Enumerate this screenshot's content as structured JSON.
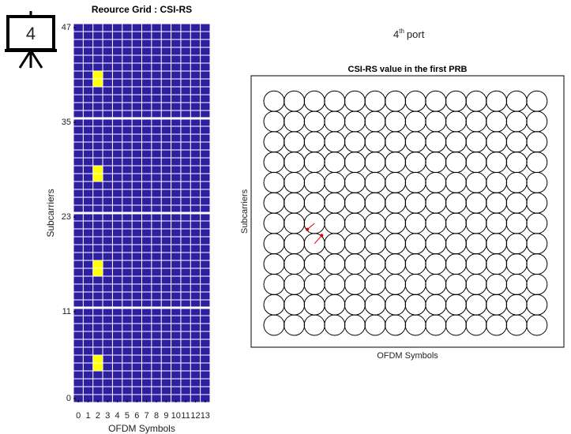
{
  "slide_number": "4",
  "port": {
    "number": "4",
    "suffix": "th",
    "word": "port"
  },
  "chart_data": [
    {
      "type": "heatmap",
      "title": "Reource Grid : CSI-RS",
      "x_label": "OFDM Symbols",
      "y_label": "Subcarriers",
      "xlim": [
        -0.5,
        13.5
      ],
      "ylim": [
        -0.5,
        47.5
      ],
      "xticks": [
        0,
        1,
        2,
        3,
        4,
        5,
        6,
        7,
        8,
        9,
        10,
        11,
        12,
        13
      ],
      "yticks": [
        0,
        11,
        23,
        35,
        47
      ],
      "color": "#2e1fa0",
      "highlight_color": "#ffff00",
      "cells": [
        [
          2,
          4
        ],
        [
          2,
          5
        ],
        [
          2,
          16
        ],
        [
          2,
          17
        ],
        [
          2,
          28
        ],
        [
          2,
          29
        ],
        [
          2,
          40
        ],
        [
          2,
          41
        ]
      ]
    },
    {
      "type": "phasor-grid",
      "title": "CSI-RS value in the first PRB",
      "x_label": "OFDM Symbols",
      "y_label": "Subcarriers",
      "cols": 14,
      "rows": 12,
      "color": "#e00000",
      "points": [
        {
          "symbol": 2,
          "subcarrier": 5,
          "re": -0.7,
          "im": -0.6
        },
        {
          "symbol": 2,
          "subcarrier": 4,
          "re": 0.7,
          "im": 0.8
        }
      ]
    }
  ]
}
